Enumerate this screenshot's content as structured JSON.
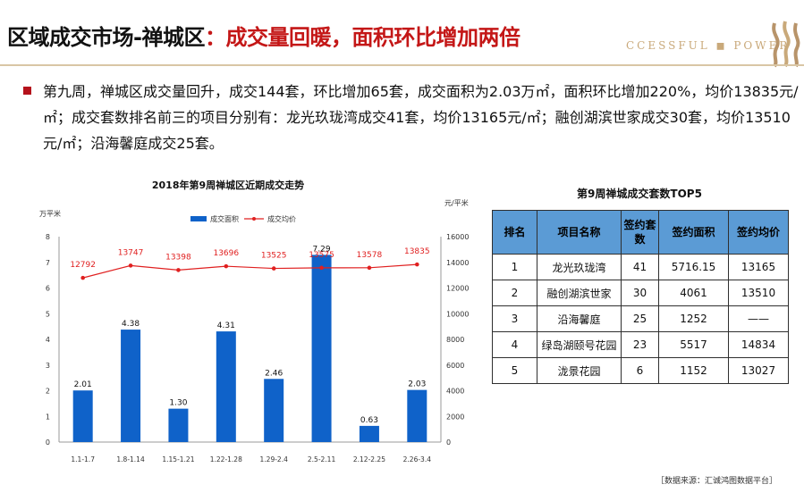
{
  "header": {
    "title_main": "区域成交市场-禅城区",
    "title_sub": "：成交量回暖，面积环比增加两倍",
    "logo_text": "CCESSFUL ◼ POWER"
  },
  "summary": {
    "text": "第九周，禅城区成交量回升，成交144套，环比增加65套，成交面积为2.03万㎡，面积环比增加220%，均价13835元/㎡；成交套数排名前三的项目分别有：龙光玖珑湾成交41套，均价13165元/㎡；融创湖滨世家成交30套，均价13510元/㎡；沿海馨庭成交25套。"
  },
  "chart_data": {
    "type": "bar",
    "title": "2018年第9周禅城区近期成交走势",
    "categories": [
      "1.1-1.7",
      "1.8-1.14",
      "1.15-1.21",
      "1.22-1.28",
      "1.29-2.4",
      "2.5-2.11",
      "2.12-2.25",
      "2.26-3.4"
    ],
    "series": [
      {
        "name": "成交面积",
        "type": "bar",
        "axis": "left",
        "color": "#0f62c9",
        "values": [
          2.01,
          4.38,
          1.3,
          4.31,
          2.46,
          7.29,
          0.63,
          2.03
        ],
        "labels": [
          "2.01",
          "4.38",
          "1.30",
          "4.31",
          "2.46",
          "7.29",
          "0.63",
          "2.03"
        ]
      },
      {
        "name": "成交均价",
        "type": "line",
        "axis": "right",
        "color": "#e02020",
        "values": [
          12792,
          13747,
          13398,
          13696,
          13525,
          13575,
          13578,
          13835
        ],
        "labels": [
          "12792",
          "13747",
          "13398",
          "13696",
          "13525",
          "13575",
          "13578",
          "13835"
        ]
      }
    ],
    "y_left": {
      "unit": "万平米",
      "range": [
        0,
        8
      ],
      "ticks": [
        "0",
        "1",
        "2",
        "3",
        "4",
        "5",
        "6",
        "7",
        "8"
      ]
    },
    "y_right": {
      "unit": "元/平米",
      "range": [
        0,
        16000
      ],
      "ticks": [
        "0",
        "2000",
        "4000",
        "6000",
        "8000",
        "10000",
        "12000",
        "14000",
        "16000"
      ]
    },
    "grid": false,
    "legend": "top-center"
  },
  "table": {
    "title": "第9周禅城成交套数TOP5",
    "headers": [
      "排名",
      "项目名称",
      "签约套数",
      "签约面积",
      "签约均价"
    ],
    "rows": [
      [
        "1",
        "龙光玖珑湾",
        "41",
        "5716.15",
        "13165"
      ],
      [
        "2",
        "融创湖滨世家",
        "30",
        "4061",
        "13510"
      ],
      [
        "3",
        "沿海馨庭",
        "25",
        "1252",
        "——"
      ],
      [
        "4",
        "绿岛湖颐号花园",
        "23",
        "5517",
        "14834"
      ],
      [
        "5",
        "泷景花园",
        "6",
        "1152",
        "13027"
      ]
    ]
  },
  "footer": {
    "source": "［数据来源：汇诚鸿图数据平台］"
  },
  "colors": {
    "accent_red": "#c41717",
    "bar_blue": "#0f62c9",
    "line_red": "#e02020",
    "table_header": "#5b9bd5"
  }
}
